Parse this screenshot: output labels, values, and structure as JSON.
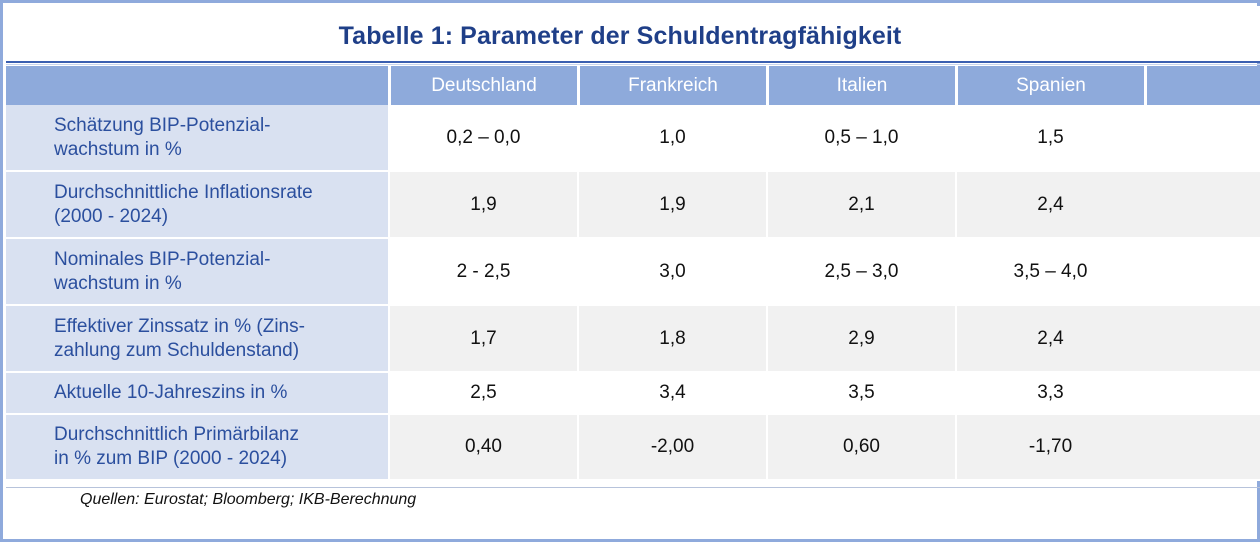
{
  "title": "Tabelle 1: Parameter der Schuldentragfähigkeit",
  "columns": [
    "Deutschland",
    "Frankreich",
    "Italien",
    "Spanien"
  ],
  "rows": [
    {
      "label_line1": "Schätzung BIP-Potenzial-",
      "label_line2": "wachstum in %",
      "values": [
        "0,2 – 0,0",
        "1,0",
        "0,5 – 1,0",
        "1,5"
      ]
    },
    {
      "label_line1": "Durchschnittliche Inflationsrate",
      "label_line2": "(2000 - 2024)",
      "values": [
        "1,9",
        "1,9",
        "2,1",
        "2,4"
      ]
    },
    {
      "label_line1": "Nominales BIP-Potenzial-",
      "label_line2": "wachstum in %",
      "values": [
        "2 - 2,5",
        "3,0",
        "2,5 – 3,0",
        "3,5 – 4,0"
      ]
    },
    {
      "label_line1": "Effektiver Zinssatz in % (Zins-",
      "label_line2": "zahlung zum Schuldenstand)",
      "values": [
        "1,7",
        "1,8",
        "2,9",
        "2,4"
      ]
    },
    {
      "label_line1": "Aktuelle 10-Jahreszins in %",
      "label_line2": "",
      "values": [
        "2,5",
        "3,4",
        "3,5",
        "3,3"
      ]
    },
    {
      "label_line1": "Durchschnittlich Primärbilanz",
      "label_line2": "in % zum BIP (2000 - 2024)",
      "values": [
        "0,40",
        "-2,00",
        "0,60",
        "-1,70"
      ]
    }
  ],
  "source": "Quellen: Eurostat; Bloomberg; IKB-Berechnung",
  "colors": {
    "title": "#1f3f88",
    "header_bg": "#8eaadb",
    "label_bg": "#d9e1f1",
    "label_text": "#2b4f9e",
    "stripe_bg": "#f1f1f1",
    "frame": "#8faadc"
  }
}
